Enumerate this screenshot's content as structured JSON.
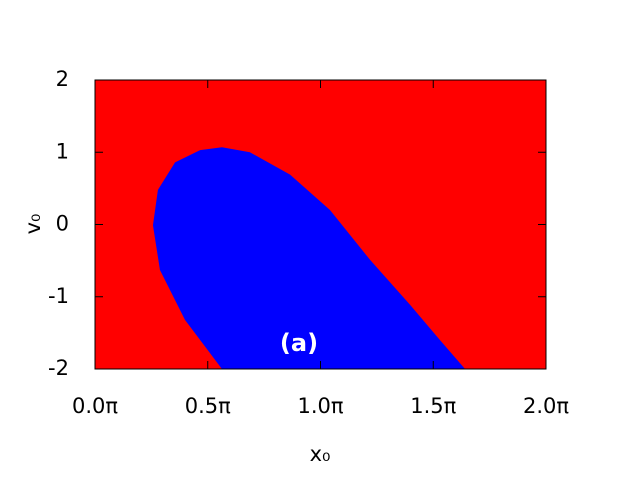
{
  "chart_data": {
    "type": "region",
    "x_label": "x₀",
    "y_label": "v₀",
    "annotation": "(a)",
    "background_color": "#ff0000",
    "regions": [
      {
        "color": "#0000ff",
        "x": [
          0.563,
          0.399,
          0.288,
          0.257,
          0.279,
          0.355,
          0.466,
          0.563,
          0.687,
          0.865,
          1.042,
          1.22,
          1.397,
          1.53,
          1.641
        ],
        "y": [
          -2,
          -1.32,
          -0.63,
          -0.01,
          0.48,
          0.86,
          1.03,
          1.07,
          1.0,
          0.69,
          0.2,
          -0.49,
          -1.11,
          -1.6,
          -2
        ]
      }
    ],
    "xlim": [
      0,
      2
    ],
    "ylim": [
      -2,
      2
    ],
    "xticks": [
      {
        "value": 0,
        "label": "0.0π"
      },
      {
        "value": 0.5,
        "label": "0.5π"
      },
      {
        "value": 1,
        "label": "1.0π"
      },
      {
        "value": 1.5,
        "label": "1.5π"
      },
      {
        "value": 2,
        "label": "2.0π"
      }
    ],
    "yticks": [
      -2,
      -1,
      0,
      1,
      2
    ]
  }
}
